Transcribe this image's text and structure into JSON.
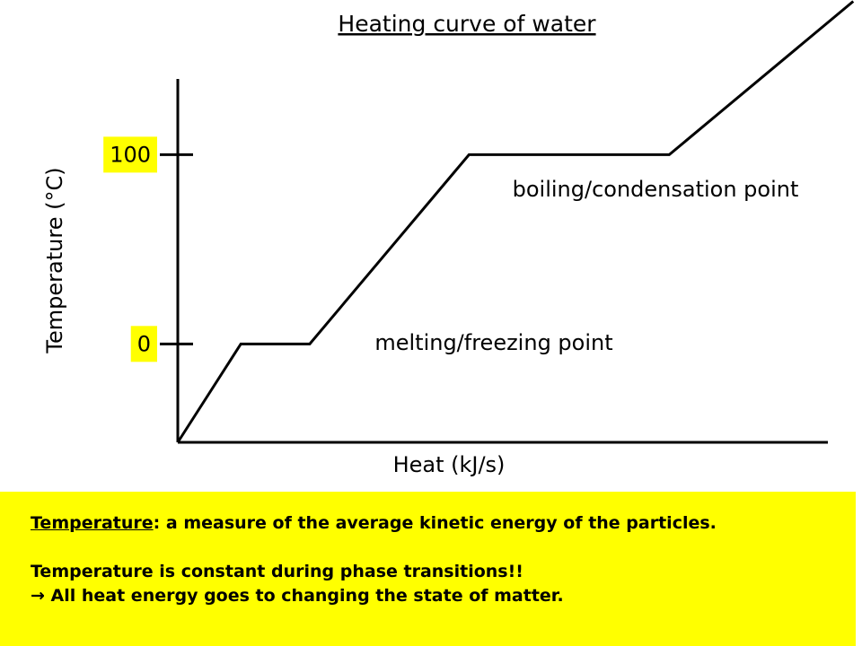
{
  "chart_data": {
    "type": "line",
    "title": "Heating curve of water",
    "x_label": "Heat (kJ/s)",
    "y_label": "Temperature (°C)",
    "x": [
      0,
      9.7,
      20.3,
      44.8,
      75.6,
      103.9
    ],
    "values": [
      -52,
      0,
      0,
      100,
      100,
      181
    ],
    "color": "#000000",
    "xlim": [
      0,
      100
    ],
    "ylim": [
      -52,
      140
    ],
    "yticks": [
      0,
      100
    ],
    "tick_label_background": "#ffff00",
    "annotations": [
      "boiling/condensation point",
      "melting/freezing point"
    ]
  },
  "notes": {
    "term": "Temperature",
    "definition": ": a measure of the average kinetic energy of the particles.",
    "line2": "Temperature is constant during phase transitions!!",
    "line3": "→ All heat energy goes to changing the state of matter.",
    "background": "#ffff00"
  }
}
